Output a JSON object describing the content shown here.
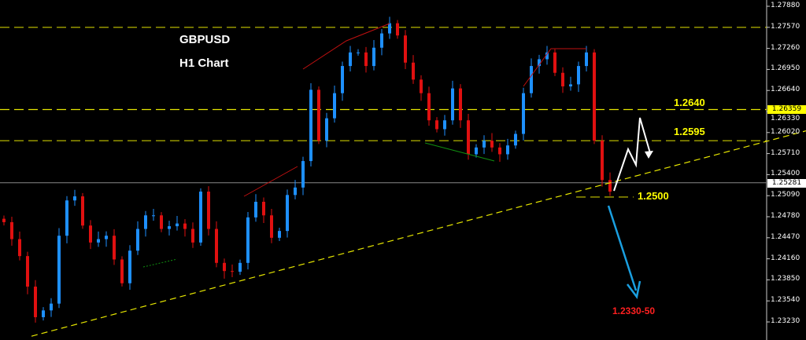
{
  "chart_data": {
    "type": "candlestick",
    "title": "GBPUSD",
    "subtitle": "H1 Chart",
    "ylim": [
      1.2315,
      1.2798
    ],
    "y_ticks": [
      "1.27880",
      "1.27570",
      "1.27260",
      "1.26950",
      "1.26640",
      "1.26330",
      "1.26020",
      "1.25710",
      "1.25400",
      "1.25090",
      "1.24780",
      "1.24470",
      "1.24160",
      "1.23850",
      "1.23540",
      "1.23230"
    ],
    "y_tick_values": [
      1.2788,
      1.2757,
      1.2726,
      1.2695,
      1.2664,
      1.2633,
      1.2602,
      1.2571,
      1.254,
      1.2509,
      1.2478,
      1.2447,
      1.2416,
      1.2385,
      1.2354,
      1.2323
    ],
    "current_price": "1.25281",
    "marked_price": "1.26359",
    "closes": [
      1.247,
      1.2445,
      1.242,
      1.2375,
      1.233,
      1.234,
      1.235,
      1.245,
      1.2502,
      1.2508,
      1.2465,
      1.244,
      1.2445,
      1.245,
      1.2415,
      1.238,
      1.2428,
      1.246,
      1.248,
      1.248,
      1.246,
      1.2464,
      1.2468,
      1.246,
      1.244,
      1.2515,
      1.246,
      1.241,
      1.2398,
      1.2397,
      1.241,
      1.2477,
      1.25,
      1.248,
      1.2447,
      1.2457,
      1.251,
      1.2521,
      1.256,
      1.2665,
      1.259,
      1.2623,
      1.266,
      1.27,
      1.272,
      1.272,
      1.27,
      1.2727,
      1.2748,
      1.2763,
      1.2745,
      1.2705,
      1.268,
      1.266,
      1.262,
      1.2607,
      1.262,
      1.2667,
      1.262,
      1.257,
      1.258,
      1.259,
      1.258,
      1.257,
      1.2583,
      1.26,
      1.266,
      1.27,
      1.271,
      1.272,
      1.269,
      1.267,
      1.2673,
      1.27,
      1.272,
      1.259,
      1.2532,
      1.2515
    ],
    "levels": [
      {
        "price": 1.2757,
        "label": ""
      },
      {
        "price": 1.26359,
        "label": "1.2640"
      },
      {
        "price": 1.259,
        "label": "1.2595"
      },
      {
        "price": 1.2507,
        "label": "1.2500"
      }
    ],
    "trendline": [
      [
        3.5,
        1.2302
      ],
      [
        102.4,
        1.2606
      ]
    ],
    "target_label": "1.2330-50",
    "colors": {
      "bull": "#1e90ff",
      "bear": "#e01010",
      "level": "#c8c800",
      "trend": "#e6e600",
      "target": "#ff2020",
      "arrow_down": "#1a9fe0",
      "arrow_up": "#ffffff"
    }
  }
}
